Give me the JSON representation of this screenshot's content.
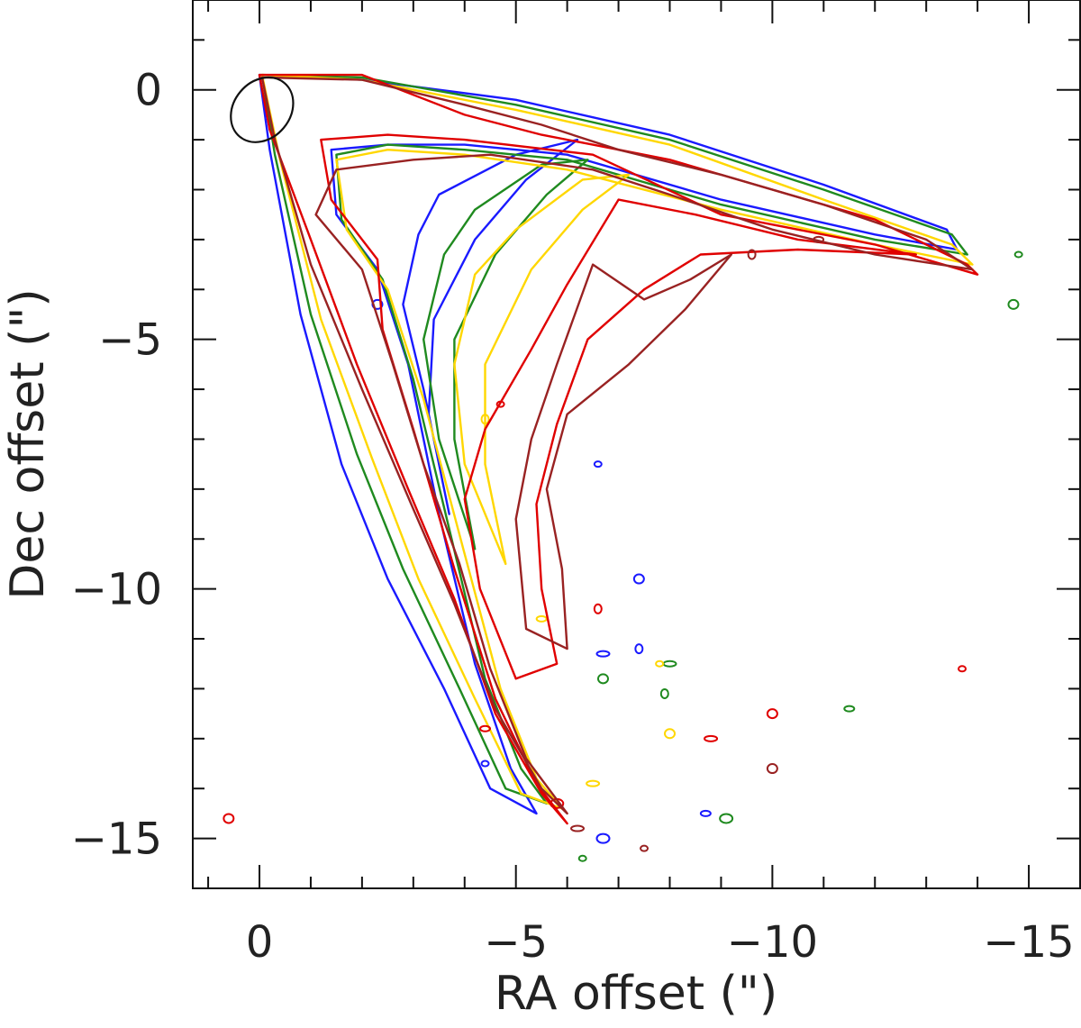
{
  "chart_data": {
    "type": "contour",
    "title": "",
    "xlabel": "RA offset (\")",
    "ylabel": "Dec offset (\")",
    "xlim": [
      1.3,
      -16.0
    ],
    "ylim": [
      -16.0,
      1.8
    ],
    "x_ticks": [
      0,
      -5,
      -10,
      -15
    ],
    "x_tick_labels": [
      "0",
      "−5",
      "−10",
      "−15"
    ],
    "y_ticks": [
      0,
      -5,
      -10,
      -15
    ],
    "y_tick_labels": [
      "0",
      "−5",
      "−10",
      "−15"
    ],
    "minor_tick_step": 1,
    "beam": {
      "center": [
        -0.05,
        -0.4
      ],
      "major": 1.4,
      "minor": 1.1,
      "angle_deg": 40
    },
    "series": [
      {
        "name": "blue",
        "color": "#1a1aff",
        "outer": [
          [
            0,
            0.3
          ],
          [
            -2,
            0.2
          ],
          [
            -5,
            -0.2
          ],
          [
            -8,
            -0.9
          ],
          [
            -11,
            -1.9
          ],
          [
            -13.4,
            -2.8
          ],
          [
            -13.6,
            -3.2
          ],
          [
            -12,
            -2.9
          ],
          [
            -9,
            -2.2
          ],
          [
            -6,
            -1.3
          ],
          [
            -4,
            -1.1
          ],
          [
            -2.5,
            -1.1
          ],
          [
            -1.4,
            -1.2
          ],
          [
            -1.5,
            -2.5
          ],
          [
            -2.3,
            -3.6
          ],
          [
            -2.9,
            -5.5
          ],
          [
            -3.5,
            -8.5
          ],
          [
            -4.2,
            -11.5
          ],
          [
            -4.9,
            -13.6
          ],
          [
            -5.4,
            -14.5
          ],
          [
            -4.5,
            -14.0
          ],
          [
            -3.6,
            -12.0
          ],
          [
            -2.5,
            -9.8
          ],
          [
            -1.6,
            -7.5
          ],
          [
            -0.8,
            -4.5
          ],
          [
            -0.2,
            -1.2
          ],
          [
            0,
            0.3
          ]
        ],
        "inner": [
          [
            -3.5,
            -2.1
          ],
          [
            -5,
            -1.3
          ],
          [
            -6.2,
            -1.0
          ],
          [
            -5.2,
            -1.8
          ],
          [
            -4.2,
            -3.0
          ],
          [
            -3.4,
            -4.6
          ],
          [
            -3.3,
            -6.5
          ],
          [
            -3.7,
            -8.5
          ],
          [
            -3.2,
            -6.0
          ],
          [
            -2.8,
            -4.3
          ],
          [
            -3.1,
            -2.9
          ],
          [
            -3.5,
            -2.1
          ]
        ],
        "islands": [
          [
            -6.6,
            -7.5
          ],
          [
            -7.4,
            -9.8
          ],
          [
            -6.7,
            -11.3
          ],
          [
            -7.4,
            -11.2
          ],
          [
            -8.7,
            -14.5
          ],
          [
            -6.7,
            -15.0
          ],
          [
            -4.4,
            -13.5
          ],
          [
            -2.3,
            -4.3
          ]
        ]
      },
      {
        "name": "green",
        "color": "#1f8a1f",
        "outer": [
          [
            -0.05,
            0.3
          ],
          [
            -2,
            0.25
          ],
          [
            -5,
            -0.3
          ],
          [
            -8,
            -1.0
          ],
          [
            -11,
            -2.0
          ],
          [
            -13.5,
            -2.9
          ],
          [
            -13.8,
            -3.3
          ],
          [
            -12,
            -3.0
          ],
          [
            -9,
            -2.3
          ],
          [
            -6,
            -1.4
          ],
          [
            -4,
            -1.2
          ],
          [
            -2.5,
            -1.1
          ],
          [
            -1.5,
            -1.3
          ],
          [
            -1.6,
            -2.6
          ],
          [
            -2.4,
            -3.8
          ],
          [
            -3.0,
            -5.8
          ],
          [
            -3.7,
            -8.8
          ],
          [
            -4.4,
            -11.8
          ],
          [
            -5.1,
            -13.6
          ],
          [
            -5.6,
            -14.3
          ],
          [
            -4.8,
            -14.0
          ],
          [
            -3.9,
            -12.0
          ],
          [
            -2.8,
            -9.6
          ],
          [
            -1.9,
            -7.3
          ],
          [
            -1.0,
            -4.5
          ],
          [
            -0.3,
            -1.3
          ],
          [
            -0.05,
            0.3
          ]
        ],
        "inner": [
          [
            -4.2,
            -2.4
          ],
          [
            -5.5,
            -1.5
          ],
          [
            -6.4,
            -1.4
          ],
          [
            -5.6,
            -2.1
          ],
          [
            -4.6,
            -3.3
          ],
          [
            -3.8,
            -5.0
          ],
          [
            -3.8,
            -7.0
          ],
          [
            -4.2,
            -9.2
          ],
          [
            -3.5,
            -7.0
          ],
          [
            -3.2,
            -5.0
          ],
          [
            -3.6,
            -3.3
          ],
          [
            -4.2,
            -2.4
          ]
        ],
        "islands": [
          [
            -14.8,
            -3.3
          ],
          [
            -6.7,
            -11.8
          ],
          [
            -8.0,
            -11.5
          ],
          [
            -7.9,
            -12.1
          ],
          [
            -11.5,
            -12.4
          ],
          [
            -9.1,
            -14.6
          ],
          [
            -6.3,
            -15.4
          ],
          [
            -14.7,
            -4.3
          ]
        ]
      },
      {
        "name": "yellow",
        "color": "#ffd700",
        "outer": [
          [
            -0.05,
            0.3
          ],
          [
            -2,
            0.2
          ],
          [
            -5,
            -0.4
          ],
          [
            -8,
            -1.1
          ],
          [
            -11,
            -2.2
          ],
          [
            -13.5,
            -3.1
          ],
          [
            -13.9,
            -3.5
          ],
          [
            -12,
            -3.1
          ],
          [
            -9,
            -2.4
          ],
          [
            -6,
            -1.6
          ],
          [
            -4,
            -1.3
          ],
          [
            -2.5,
            -1.2
          ],
          [
            -1.5,
            -1.4
          ],
          [
            -1.7,
            -2.8
          ],
          [
            -2.5,
            -4.0
          ],
          [
            -3.2,
            -6.2
          ],
          [
            -4.0,
            -9.3
          ],
          [
            -4.7,
            -12.0
          ],
          [
            -5.4,
            -13.8
          ],
          [
            -5.9,
            -14.4
          ],
          [
            -5.1,
            -14.1
          ],
          [
            -4.2,
            -12.2
          ],
          [
            -3.1,
            -9.8
          ],
          [
            -2.2,
            -7.4
          ],
          [
            -1.2,
            -4.6
          ],
          [
            -0.4,
            -1.4
          ],
          [
            -0.05,
            0.3
          ]
        ],
        "inner": [
          [
            -5.0,
            -2.8
          ],
          [
            -6.3,
            -1.8
          ],
          [
            -7.2,
            -1.7
          ],
          [
            -6.3,
            -2.4
          ],
          [
            -5.3,
            -3.6
          ],
          [
            -4.4,
            -5.5
          ],
          [
            -4.4,
            -7.5
          ],
          [
            -4.8,
            -9.5
          ],
          [
            -4.0,
            -7.5
          ],
          [
            -3.8,
            -5.5
          ],
          [
            -4.2,
            -3.7
          ],
          [
            -5.0,
            -2.8
          ]
        ],
        "islands": [
          [
            -7.8,
            -11.5
          ],
          [
            -8.0,
            -12.9
          ],
          [
            -6.5,
            -13.9
          ],
          [
            -4.4,
            -6.6
          ],
          [
            -5.5,
            -10.6
          ]
        ]
      },
      {
        "name": "red",
        "color": "#e00000",
        "outer": [
          [
            0,
            0.3
          ],
          [
            -2,
            0.3
          ],
          [
            -4,
            -0.5
          ],
          [
            -5.5,
            -0.9
          ],
          [
            -6.5,
            -1.1
          ],
          [
            -8,
            -1.4
          ],
          [
            -10,
            -2.0
          ],
          [
            -12,
            -2.6
          ],
          [
            -13.8,
            -3.5
          ],
          [
            -14,
            -3.7
          ],
          [
            -12,
            -3.1
          ],
          [
            -9,
            -2.5
          ],
          [
            -6.5,
            -1.3
          ],
          [
            -4,
            -1.0
          ],
          [
            -2.5,
            -0.9
          ],
          [
            -1.2,
            -1.0
          ],
          [
            -1.4,
            -2.2
          ],
          [
            -2.3,
            -3.4
          ],
          [
            -2.4,
            -4.8
          ],
          [
            -3.0,
            -6.8
          ],
          [
            -3.8,
            -9.6
          ],
          [
            -4.6,
            -12.2
          ],
          [
            -5.4,
            -13.9
          ],
          [
            -6.0,
            -14.7
          ],
          [
            -5.5,
            -14.1
          ],
          [
            -4.6,
            -12.5
          ],
          [
            -3.8,
            -10.2
          ],
          [
            -2.9,
            -8.0
          ],
          [
            -1.9,
            -5.5
          ],
          [
            -1.0,
            -3.0
          ],
          [
            -0.2,
            -0.8
          ],
          [
            0,
            0.3
          ]
        ],
        "inner": [
          [
            -7.0,
            -2.2
          ],
          [
            -8.5,
            -2.5
          ],
          [
            -10.5,
            -3.0
          ],
          [
            -12.8,
            -3.3
          ],
          [
            -10.5,
            -3.2
          ],
          [
            -8.6,
            -3.3
          ],
          [
            -7.5,
            -4.0
          ],
          [
            -6.4,
            -5.0
          ],
          [
            -5.8,
            -6.7
          ],
          [
            -5.4,
            -8.3
          ],
          [
            -5.5,
            -10.0
          ],
          [
            -5.8,
            -11.5
          ],
          [
            -5.0,
            -11.8
          ],
          [
            -4.3,
            -10.0
          ],
          [
            -4.0,
            -8.2
          ],
          [
            -4.4,
            -6.8
          ],
          [
            -5.3,
            -5.2
          ],
          [
            -6.0,
            -3.9
          ],
          [
            -7.0,
            -2.2
          ]
        ],
        "islands": [
          [
            -13.7,
            -11.6
          ],
          [
            -10.0,
            -12.5
          ],
          [
            -8.8,
            -13.0
          ],
          [
            -6.6,
            -10.4
          ],
          [
            -4.4,
            -12.8
          ],
          [
            -5.8,
            -14.3
          ],
          [
            -4.7,
            -6.3
          ],
          [
            0.6,
            -14.6
          ]
        ]
      },
      {
        "name": "darkred",
        "color": "#992222",
        "outer": [
          [
            -0.05,
            0.25
          ],
          [
            -2,
            0.2
          ],
          [
            -4,
            -0.3
          ],
          [
            -5.5,
            -0.7
          ],
          [
            -7,
            -1.2
          ],
          [
            -9,
            -1.7
          ],
          [
            -11,
            -2.3
          ],
          [
            -13,
            -3.0
          ],
          [
            -13.9,
            -3.6
          ],
          [
            -12,
            -3.3
          ],
          [
            -10,
            -2.8
          ],
          [
            -8,
            -2.1
          ],
          [
            -6.5,
            -1.6
          ],
          [
            -4.5,
            -1.3
          ],
          [
            -3,
            -1.4
          ],
          [
            -1.5,
            -1.6
          ],
          [
            -1.1,
            -2.5
          ],
          [
            -2.0,
            -3.6
          ],
          [
            -2.6,
            -5.5
          ],
          [
            -3.2,
            -7.5
          ],
          [
            -3.9,
            -9.5
          ],
          [
            -4.5,
            -11.6
          ],
          [
            -5.2,
            -13.4
          ],
          [
            -6.0,
            -14.5
          ],
          [
            -5.5,
            -14.0
          ],
          [
            -4.6,
            -12.4
          ],
          [
            -3.8,
            -10.3
          ],
          [
            -3.0,
            -8.4
          ],
          [
            -2.0,
            -6.0
          ],
          [
            -1.0,
            -3.5
          ],
          [
            -0.3,
            -1.0
          ],
          [
            -0.05,
            0.25
          ]
        ],
        "inner": [
          [
            -6.5,
            -3.5
          ],
          [
            -7.5,
            -4.2
          ],
          [
            -8.4,
            -3.8
          ],
          [
            -9.2,
            -3.3
          ],
          [
            -8.3,
            -4.4
          ],
          [
            -7.2,
            -5.5
          ],
          [
            -6.0,
            -6.5
          ],
          [
            -5.6,
            -8.0
          ],
          [
            -5.9,
            -9.6
          ],
          [
            -6.0,
            -11.2
          ],
          [
            -5.2,
            -10.8
          ],
          [
            -5.0,
            -8.6
          ],
          [
            -5.3,
            -7.0
          ],
          [
            -5.8,
            -5.5
          ],
          [
            -6.5,
            -3.5
          ]
        ],
        "islands": [
          [
            -7.5,
            -15.2
          ],
          [
            -10.0,
            -13.6
          ],
          [
            -6.2,
            -14.8
          ],
          [
            -9.6,
            -3.3
          ],
          [
            -10.9,
            -3.0
          ]
        ]
      }
    ]
  }
}
